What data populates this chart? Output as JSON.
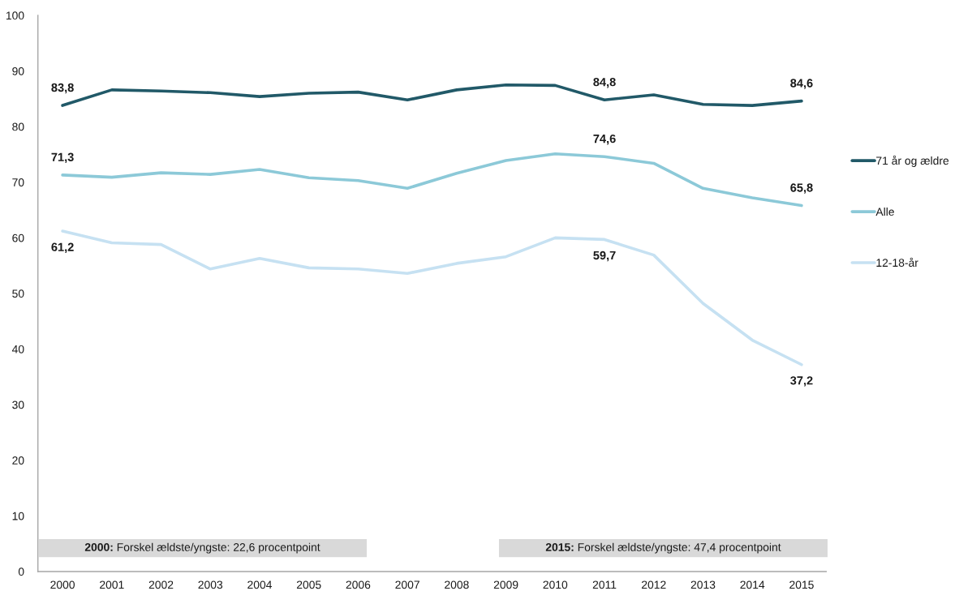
{
  "chart_data": {
    "type": "line",
    "categories": [
      "2000",
      "2001",
      "2002",
      "2003",
      "2004",
      "2005",
      "2006",
      "2007",
      "2008",
      "2009",
      "2010",
      "2011",
      "2012",
      "2013",
      "2014",
      "2015"
    ],
    "ylim": [
      0,
      100
    ],
    "yticks": [
      0,
      10,
      20,
      30,
      40,
      50,
      60,
      70,
      80,
      90,
      100
    ],
    "legend": "right",
    "series": [
      {
        "name": "71 år og ældre",
        "color": "#215968",
        "values": [
          83.8,
          86.6,
          86.4,
          86.1,
          85.4,
          86.0,
          86.2,
          84.8,
          86.6,
          87.5,
          87.4,
          84.8,
          85.7,
          84.0,
          83.8,
          84.6
        ],
        "value_labels": [
          "83,8",
          null,
          null,
          null,
          null,
          null,
          null,
          null,
          null,
          null,
          null,
          "84,8",
          null,
          null,
          null,
          "84,6"
        ]
      },
      {
        "name": "Alle",
        "color": "#8cc9d8",
        "values": [
          71.3,
          70.9,
          71.7,
          71.4,
          72.3,
          70.8,
          70.3,
          68.9,
          71.6,
          73.9,
          75.1,
          74.6,
          73.4,
          68.9,
          67.2,
          65.8
        ],
        "value_labels": [
          "71,3",
          null,
          null,
          null,
          null,
          null,
          null,
          null,
          null,
          null,
          null,
          "74,6",
          null,
          null,
          null,
          "65,8"
        ]
      },
      {
        "name": "12-18-år",
        "color": "#c6e1f2",
        "values": [
          61.2,
          59.1,
          58.8,
          54.4,
          56.3,
          54.6,
          54.4,
          53.6,
          55.4,
          56.6,
          60.0,
          59.7,
          56.9,
          48.2,
          41.6,
          37.2
        ],
        "value_labels": [
          "61,2",
          null,
          null,
          null,
          null,
          null,
          null,
          null,
          null,
          null,
          null,
          "59,7",
          null,
          null,
          null,
          "37,2"
        ]
      }
    ],
    "annotations": [
      "2000: Forskel ældste/yngste: 22,6 procentpoint",
      "2015: Forskel ældste/yngste: 47,4 procentpoint"
    ]
  }
}
